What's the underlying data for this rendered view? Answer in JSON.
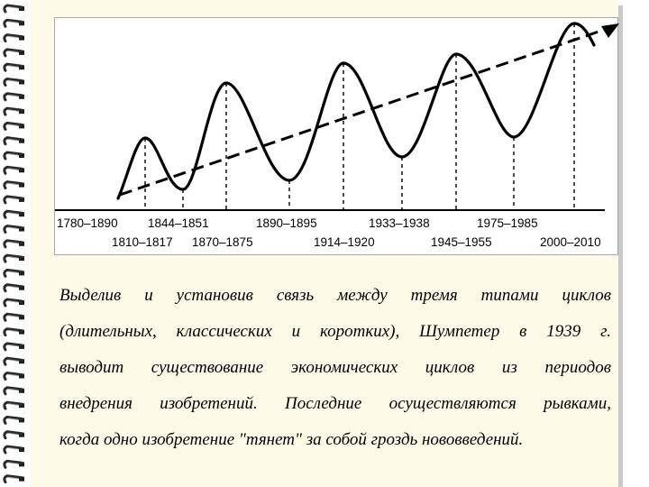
{
  "diagram": {
    "axis_labels_top": [
      "1780–1890",
      "1844–1851",
      "1890–1895",
      "1933–1938",
      "1975–1985"
    ],
    "axis_labels_bottom": [
      "1810–1817",
      "1870–1875",
      "1914–1920",
      "1945–1955",
      "2000–2010"
    ]
  },
  "text": {
    "lines": [
      "Выделив и установив связь между тремя типами циклов",
      "(длительных, классических и коротких), Шумпетер в 1939 г.",
      "выводит существование экономических циклов из периодов",
      "внедрения изобретений. Последние осуществляются рывками,",
      "когда одно изобретение \"тянет\" за собой гроздь нововведений."
    ]
  },
  "colors": {
    "page": "#fdfbe8",
    "ink": "#000000",
    "frame": "#a7a7a7"
  }
}
